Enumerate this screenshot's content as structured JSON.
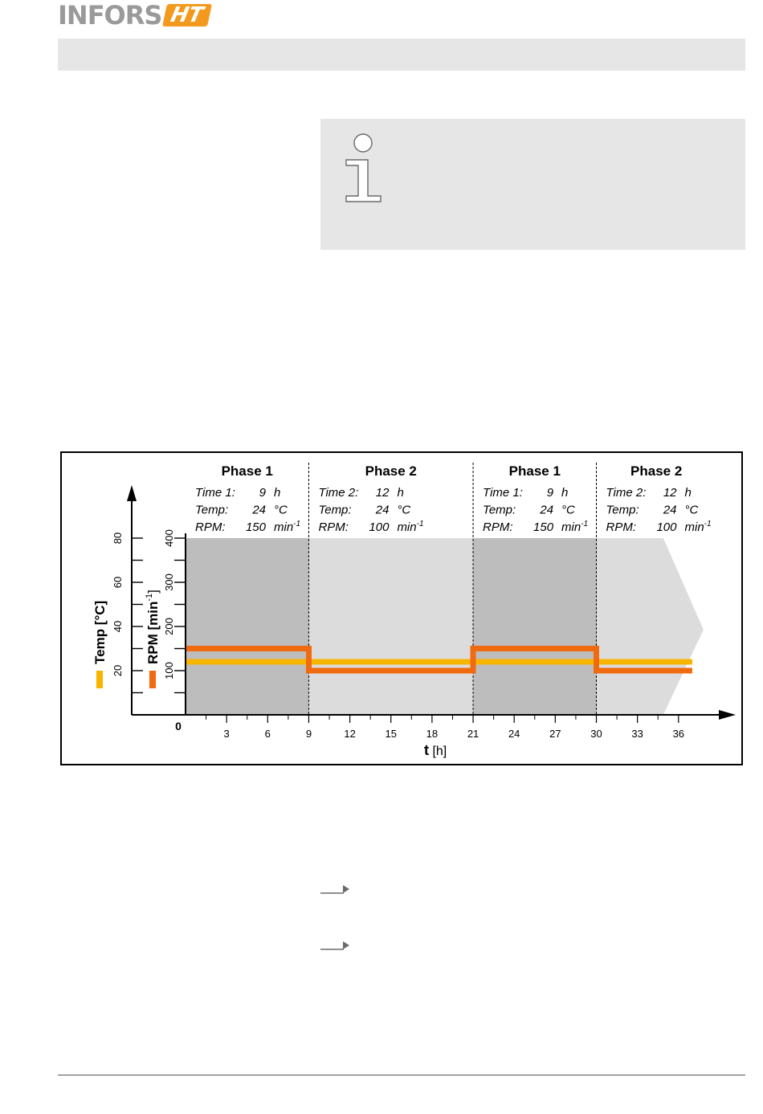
{
  "header": {
    "logo_text": "INFORS",
    "logo_mark": "HT"
  },
  "info_box": {
    "icon": "info-icon"
  },
  "step_icon": "arrow-right-icon",
  "chart_data": {
    "type": "line",
    "xlabel_bold": "t",
    "xlabel_unit": " [h]",
    "x_ticks": [
      3,
      6,
      9,
      12,
      15,
      18,
      21,
      24,
      27,
      30,
      33,
      36
    ],
    "origin_label": "0",
    "xlim": [
      0,
      38
    ],
    "temp_axis": {
      "label": "Temp [°C]",
      "ticks": [
        20,
        40,
        60,
        80
      ],
      "ylim": [
        0,
        80
      ]
    },
    "rpm_axis": {
      "label": "RPM [min-1]",
      "label_main": "RPM [min",
      "label_sup": "-1",
      "label_end": "]",
      "ticks": [
        100,
        200,
        300,
        400
      ],
      "ylim": [
        0,
        400
      ]
    },
    "phases": [
      {
        "title": "Phase 1",
        "start": 0,
        "end": 9,
        "time_label": "Time 1:",
        "time": "9",
        "time_unit": "h",
        "temp_label": "Temp:",
        "temp": "24",
        "temp_unit": "°C",
        "rpm_label": "RPM:",
        "rpm": "150",
        "rpm_unit": "min",
        "rpm_unit_sup": "-1"
      },
      {
        "title": "Phase 2",
        "start": 9,
        "end": 21,
        "time_label": "Time 2:",
        "time": "12",
        "time_unit": "h",
        "temp_label": "Temp:",
        "temp": "24",
        "temp_unit": "°C",
        "rpm_label": "RPM:",
        "rpm": "100",
        "rpm_unit": "min",
        "rpm_unit_sup": "-1"
      },
      {
        "title": "Phase 1",
        "start": 21,
        "end": 30,
        "time_label": "Time 1:",
        "time": "9",
        "time_unit": "h",
        "temp_label": "Temp:",
        "temp": "24",
        "temp_unit": "°C",
        "rpm_label": "RPM:",
        "rpm": "150",
        "rpm_unit": "min",
        "rpm_unit_sup": "-1"
      },
      {
        "title": "Phase 2",
        "start": 30,
        "end": 37,
        "time_label": "Time 2:",
        "time": "12",
        "time_unit": "h",
        "temp_label": "Temp:",
        "temp": "24",
        "temp_unit": "°C",
        "rpm_label": "RPM:",
        "rpm": "100",
        "rpm_unit": "min",
        "rpm_unit_sup": "-1"
      }
    ],
    "series": [
      {
        "key": "temp",
        "color": "#f7b500",
        "axis": "temp",
        "x": [
          0,
          9,
          9,
          21,
          21,
          30,
          30,
          37
        ],
        "y": [
          24,
          24,
          24,
          24,
          24,
          24,
          24,
          24
        ]
      },
      {
        "key": "rpm",
        "color": "#f06a0f",
        "axis": "rpm",
        "x": [
          0,
          9,
          9,
          21,
          21,
          30,
          30,
          37
        ],
        "y": [
          150,
          150,
          100,
          100,
          150,
          150,
          100,
          100
        ]
      }
    ],
    "colors": {
      "phase1_bg": "#bdbdbd",
      "phase2_bg": "#dcdcdc"
    }
  }
}
